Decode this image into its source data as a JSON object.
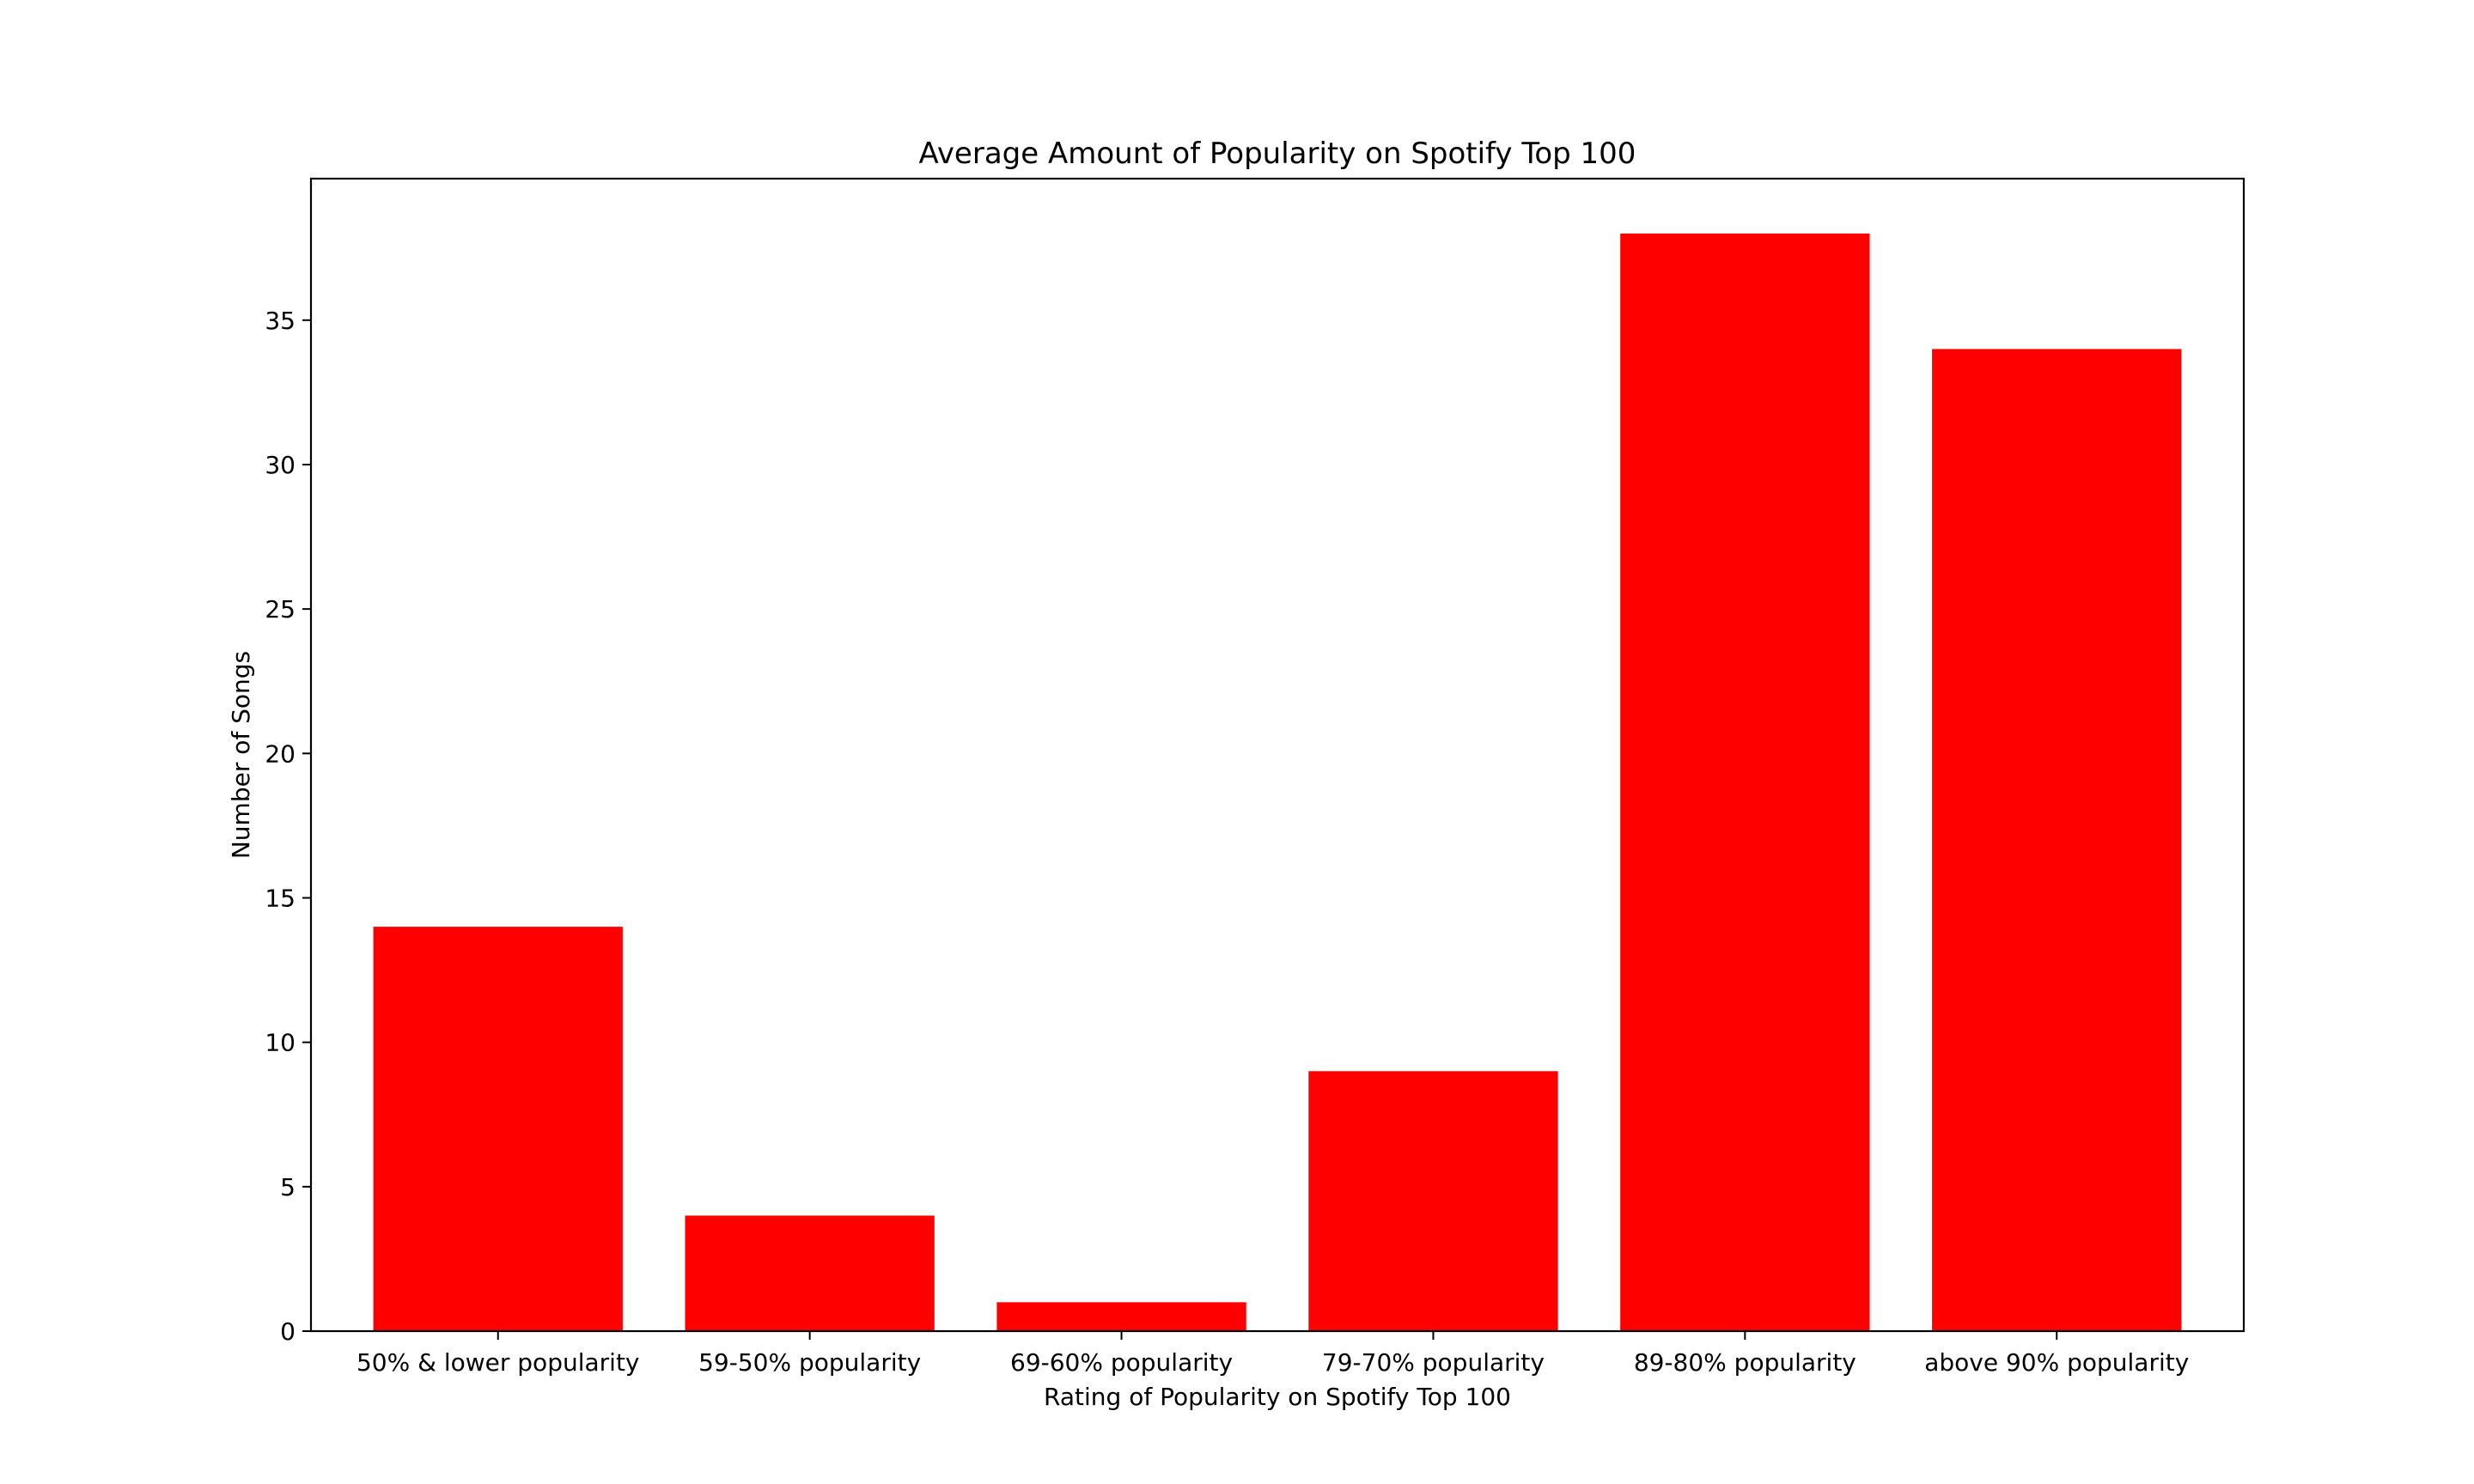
{
  "chart_data": {
    "type": "bar",
    "title": "Average Amount of Popularity on Spotify Top 100",
    "xlabel": "Rating of Popularity on Spotify Top 100",
    "ylabel": "Number of Songs",
    "categories": [
      "50% & lower popularity",
      "59-50% popularity",
      "69-60% popularity",
      "79-70% popularity",
      "89-80% popularity",
      "above 90% popularity"
    ],
    "values": [
      14,
      4,
      1,
      9,
      38,
      34
    ],
    "ylim": [
      0,
      39.9
    ],
    "yticks": [
      0,
      5,
      10,
      15,
      20,
      25,
      30,
      35
    ],
    "grid": false,
    "legend": "none",
    "bar_color": "#ff0000"
  }
}
